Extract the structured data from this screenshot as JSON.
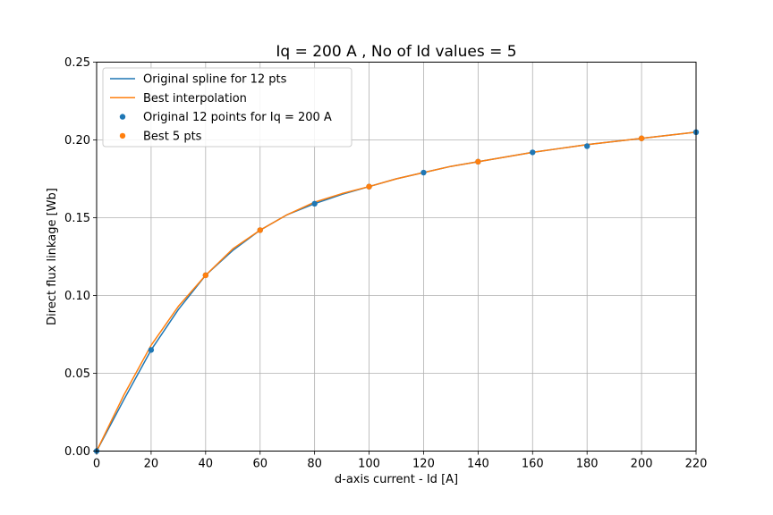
{
  "chart_data": {
    "type": "line",
    "title": "Iq  = 200 A , No of Id values = 5",
    "xlabel": "d-axis current - Id [A]",
    "ylabel": "Direct flux linkage [Wb]",
    "xlim": [
      0,
      220
    ],
    "ylim": [
      0,
      0.25
    ],
    "xticks": [
      0,
      20,
      40,
      60,
      80,
      100,
      120,
      140,
      160,
      180,
      200,
      220
    ],
    "yticks": [
      0.0,
      0.05,
      0.1,
      0.15,
      0.2,
      0.25
    ],
    "xtick_labels": [
      "0",
      "20",
      "40",
      "60",
      "80",
      "100",
      "120",
      "140",
      "160",
      "180",
      "200",
      "220"
    ],
    "ytick_labels": [
      "0.00",
      "0.05",
      "0.10",
      "0.15",
      "0.20",
      "0.25"
    ],
    "grid": true,
    "legend_position": "top-left",
    "series": [
      {
        "name": "Original spline for 12 pts",
        "kind": "line",
        "color": "#1f77b4",
        "x": [
          0,
          10,
          20,
          30,
          40,
          50,
          60,
          70,
          80,
          90,
          100,
          110,
          120,
          130,
          140,
          150,
          160,
          170,
          180,
          190,
          200,
          210,
          220
        ],
        "y": [
          0,
          0.033,
          0.065,
          0.091,
          0.113,
          0.129,
          0.142,
          0.152,
          0.159,
          0.165,
          0.17,
          0.175,
          0.179,
          0.183,
          0.186,
          0.189,
          0.192,
          0.1945,
          0.197,
          0.199,
          0.201,
          0.203,
          0.205
        ]
      },
      {
        "name": "Best interpolation",
        "kind": "line",
        "color": "#ff7f0e",
        "x": [
          0,
          10,
          20,
          30,
          40,
          50,
          60,
          70,
          80,
          90,
          100,
          110,
          120,
          130,
          140,
          150,
          160,
          170,
          180,
          190,
          200,
          210,
          220
        ],
        "y": [
          0,
          0.036,
          0.068,
          0.093,
          0.113,
          0.13,
          0.142,
          0.152,
          0.16,
          0.1655,
          0.17,
          0.175,
          0.179,
          0.183,
          0.186,
          0.189,
          0.192,
          0.1945,
          0.197,
          0.199,
          0.201,
          0.203,
          0.205
        ]
      },
      {
        "name": "Original 12 points for Iq = 200 A",
        "kind": "scatter",
        "color": "#1f77b4",
        "x": [
          0,
          20,
          40,
          60,
          80,
          100,
          120,
          140,
          160,
          180,
          200,
          220
        ],
        "y": [
          0,
          0.065,
          0.113,
          0.142,
          0.159,
          0.17,
          0.179,
          0.186,
          0.192,
          0.196,
          0.201,
          0.205
        ]
      },
      {
        "name": "Best 5 pts",
        "kind": "scatter",
        "color": "#ff7f0e",
        "x": [
          40,
          60,
          100,
          140,
          200
        ],
        "y": [
          0.113,
          0.142,
          0.17,
          0.186,
          0.201
        ]
      }
    ]
  }
}
